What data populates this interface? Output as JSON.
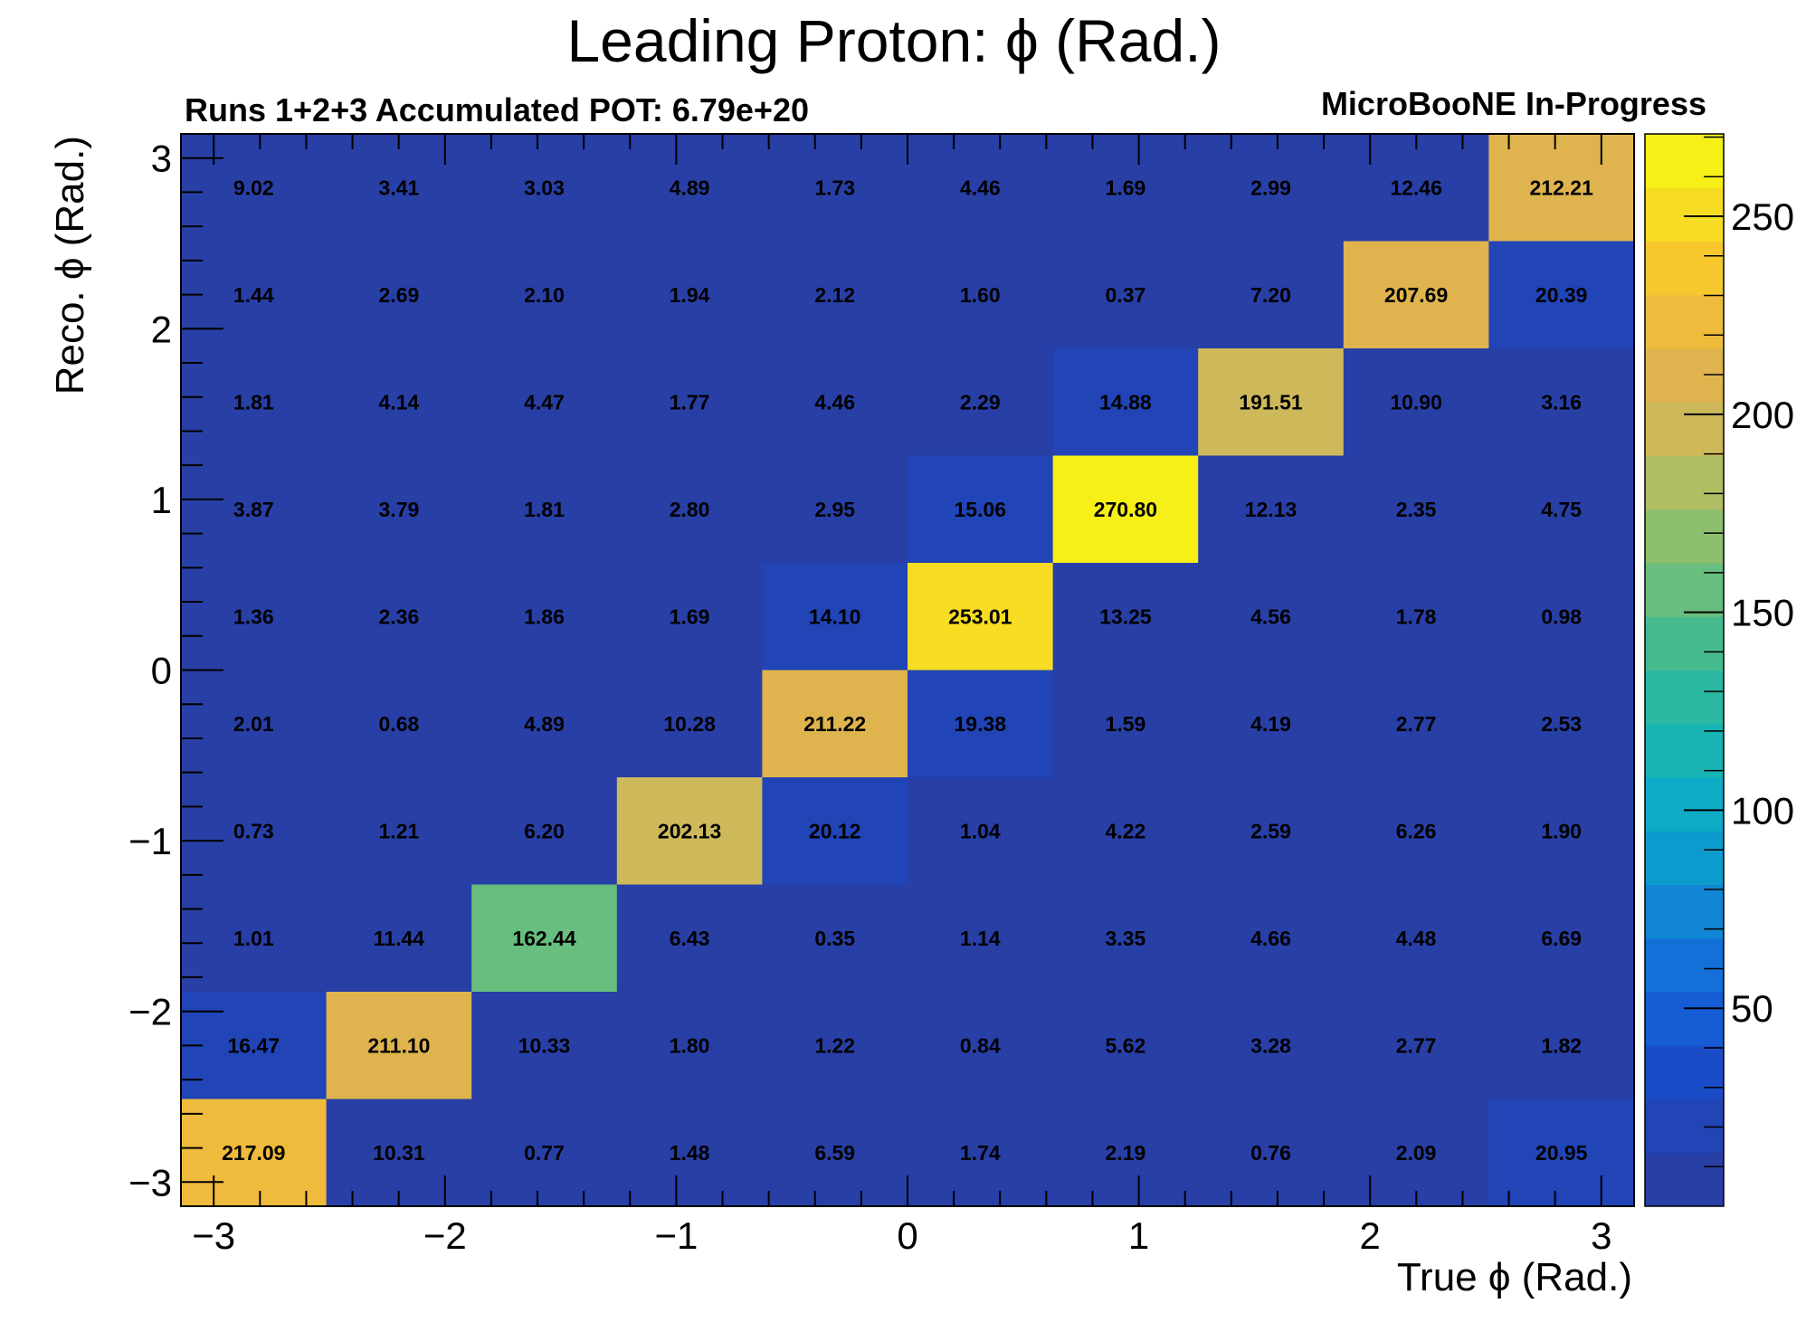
{
  "chart_data": {
    "type": "heatmap",
    "title": "Leading Proton:  ϕ (Rad.)",
    "subtitle_left": "Runs 1+2+3 Accumulated POT: 6.79e+20",
    "subtitle_right": "MicroBooNE In-Progress",
    "xlabel": "True ϕ (Rad.)",
    "ylabel": "Reco. ϕ (Rad.)",
    "xlim": [
      -3.14159,
      3.14159
    ],
    "ylim": [
      -3.14159,
      3.14159
    ],
    "zlim": [
      0,
      270.8
    ],
    "x_ticks": [
      "−3",
      "−2",
      "−1",
      "0",
      "1",
      "2",
      "3"
    ],
    "x_tick_values": [
      -3,
      -2,
      -1,
      0,
      1,
      2,
      3
    ],
    "y_ticks": [
      "−3",
      "−2",
      "−1",
      "0",
      "1",
      "2",
      "3"
    ],
    "y_tick_values": [
      -3,
      -2,
      -1,
      0,
      1,
      2,
      3
    ],
    "colorbar_ticks": [
      "50",
      "100",
      "150",
      "200",
      "250"
    ],
    "colorbar_tick_values": [
      50,
      100,
      150,
      200,
      250
    ],
    "n_bins": 10,
    "rows_top_to_bottom": [
      [
        "9.02",
        "3.41",
        "3.03",
        "4.89",
        "1.73",
        "4.46",
        "1.69",
        "2.99",
        "12.46",
        "212.21"
      ],
      [
        "1.44",
        "2.69",
        "2.10",
        "1.94",
        "2.12",
        "1.60",
        "0.37",
        "7.20",
        "207.69",
        "20.39"
      ],
      [
        "1.81",
        "4.14",
        "4.47",
        "1.77",
        "4.46",
        "2.29",
        "14.88",
        "191.51",
        "10.90",
        "3.16"
      ],
      [
        "3.87",
        "3.79",
        "1.81",
        "2.80",
        "2.95",
        "15.06",
        "270.80",
        "12.13",
        "2.35",
        "4.75"
      ],
      [
        "1.36",
        "2.36",
        "1.86",
        "1.69",
        "14.10",
        "253.01",
        "13.25",
        "4.56",
        "1.78",
        "0.98"
      ],
      [
        "2.01",
        "0.68",
        "4.89",
        "10.28",
        "211.22",
        "19.38",
        "1.59",
        "4.19",
        "2.77",
        "2.53"
      ],
      [
        "0.73",
        "1.21",
        "6.20",
        "202.13",
        "20.12",
        "1.04",
        "4.22",
        "2.59",
        "6.26",
        "1.90"
      ],
      [
        "1.01",
        "11.44",
        "162.44",
        "6.43",
        "0.35",
        "1.14",
        "3.35",
        "4.66",
        "4.48",
        "6.69"
      ],
      [
        "16.47",
        "211.10",
        "10.33",
        "1.80",
        "1.22",
        "0.84",
        "5.62",
        "3.28",
        "2.77",
        "1.82"
      ],
      [
        "217.09",
        "10.31",
        "0.77",
        "1.48",
        "6.59",
        "1.74",
        "2.19",
        "0.76",
        "2.09",
        "20.95"
      ]
    ],
    "palette": [
      "#283fa6",
      "#2144b6",
      "#1a4cc8",
      "#155cd5",
      "#1270d8",
      "#1086d4",
      "#0c9bcd",
      "#0eaac6",
      "#18b4b4",
      "#2ab8a2",
      "#46bc8e",
      "#68be7e",
      "#8ebf6e",
      "#b0bd62",
      "#cdb95a",
      "#dfb44e",
      "#efbb3c",
      "#f6c82e",
      "#f6dc22",
      "#f6f018"
    ],
    "grid": false,
    "legend": "colorbar-right"
  }
}
